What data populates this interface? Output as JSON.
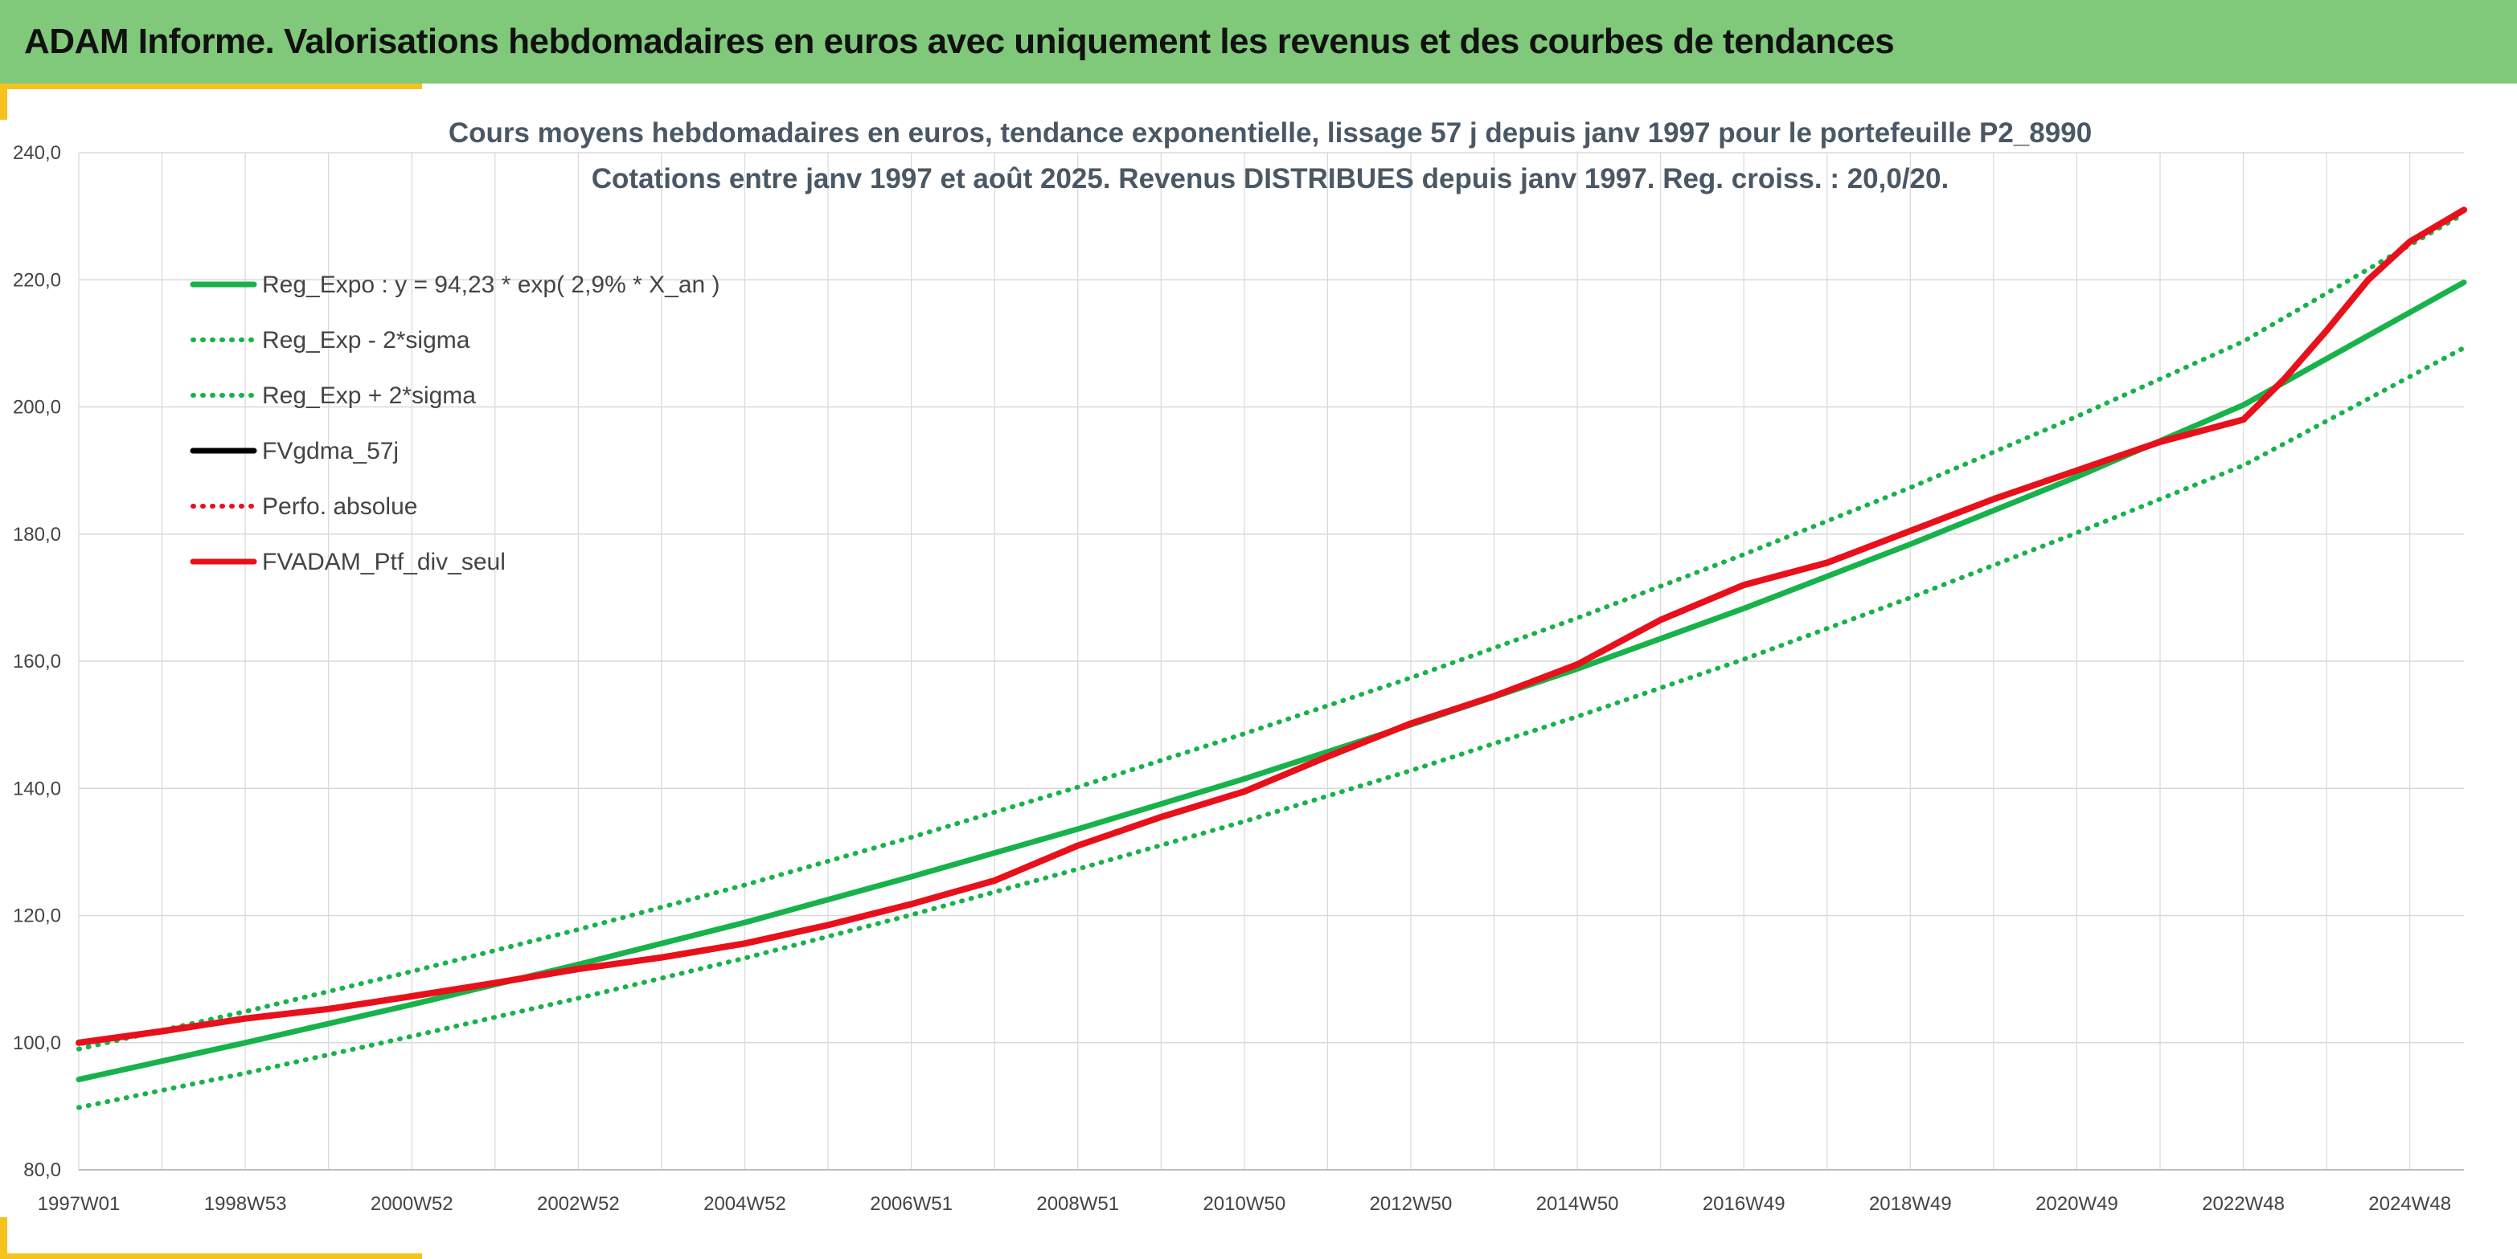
{
  "header": {
    "title": "ADAM Informe. Valorisations hebdomadaires en euros avec uniquement les revenus et des courbes de tendances"
  },
  "colors": {
    "header_bg": "#80c97a",
    "accent": "#f6c21c",
    "reg_green": "#18b24b",
    "series_red": "#e8101a",
    "series_black": "#000000",
    "grid": "#d9d9d9"
  },
  "chart_data": {
    "type": "line",
    "title_line1": "Cours moyens hebdomadaires en euros, tendance exponentielle, lissage 57 j depuis janv 1997 pour le portefeuille P2_8990",
    "title_line2": "Cotations entre janv 1997 et août 2025. Revenus DISTRIBUES depuis janv 1997. Reg. croiss. : 20,0/20.",
    "xlabel": "",
    "ylabel": "",
    "x_range": [
      1997.0,
      2025.65
    ],
    "ylim": [
      80,
      240
    ],
    "y_ticks": [
      {
        "value": 80,
        "label": "80,0"
      },
      {
        "value": 100,
        "label": "100,0"
      },
      {
        "value": 120,
        "label": "120,0"
      },
      {
        "value": 140,
        "label": "140,0"
      },
      {
        "value": 160,
        "label": "160,0"
      },
      {
        "value": 180,
        "label": "180,0"
      },
      {
        "value": 200,
        "label": "200,0"
      },
      {
        "value": 220,
        "label": "220,0"
      },
      {
        "value": 240,
        "label": "240,0"
      }
    ],
    "x_ticks": [
      {
        "year": 1997.0,
        "label": "1997W01"
      },
      {
        "year": 1999.0,
        "label": "1998W53"
      },
      {
        "year": 2001.0,
        "label": "2000W52"
      },
      {
        "year": 2003.0,
        "label": "2002W52"
      },
      {
        "year": 2005.0,
        "label": "2004W52"
      },
      {
        "year": 2007.0,
        "label": "2006W51"
      },
      {
        "year": 2009.0,
        "label": "2008W51"
      },
      {
        "year": 2011.0,
        "label": "2010W50"
      },
      {
        "year": 2013.0,
        "label": "2012W50"
      },
      {
        "year": 2015.0,
        "label": "2014W50"
      },
      {
        "year": 2017.0,
        "label": "2016W49"
      },
      {
        "year": 2019.0,
        "label": "2018W49"
      },
      {
        "year": 2021.0,
        "label": "2020W49"
      },
      {
        "year": 2023.0,
        "label": "2022W48"
      },
      {
        "year": 2025.0,
        "label": "2024W48"
      }
    ],
    "grid": true,
    "legend_placement": "top-left",
    "series": [
      {
        "name": "Reg_Expo : y = 94,23 * exp( 2,9% *  X_an )",
        "style": "solid",
        "color": "#18b24b",
        "x": [
          1997,
          1999,
          2001,
          2003,
          2005,
          2007,
          2009,
          2011,
          2013,
          2015,
          2017,
          2019,
          2021,
          2023,
          2025.65
        ],
        "y": [
          94.2,
          100.0,
          106.0,
          112.3,
          118.9,
          126.1,
          133.6,
          141.5,
          150.0,
          158.8,
          168.3,
          178.4,
          189.0,
          200.3,
          219.6
        ]
      },
      {
        "name": "Reg_Exp - 2*sigma",
        "style": "dotted",
        "color": "#18b24b",
        "x": [
          1997,
          1999,
          2001,
          2003,
          2005,
          2007,
          2009,
          2011,
          2013,
          2015,
          2017,
          2019,
          2021,
          2023,
          2025.65
        ],
        "y": [
          89.8,
          95.2,
          101.0,
          107.0,
          113.3,
          120.1,
          127.3,
          134.8,
          142.8,
          151.3,
          160.3,
          170.0,
          180.2,
          190.8,
          209.3
        ]
      },
      {
        "name": "Reg_Exp + 2*sigma",
        "style": "dotted",
        "color": "#18b24b",
        "x": [
          1997,
          1999,
          2001,
          2003,
          2005,
          2007,
          2009,
          2011,
          2013,
          2015,
          2017,
          2019,
          2021,
          2023,
          2025.65
        ],
        "y": [
          99.0,
          104.9,
          111.2,
          117.8,
          124.8,
          132.3,
          140.2,
          148.6,
          157.4,
          166.8,
          176.8,
          187.3,
          198.5,
          210.3,
          230.4
        ]
      },
      {
        "name": "FVgdma_57j",
        "style": "solid",
        "color": "#000000",
        "x": [
          1997,
          1998,
          1999,
          2000,
          2001,
          2002,
          2003,
          2004,
          2005,
          2006,
          2007,
          2008,
          2009,
          2010,
          2011,
          2012,
          2013,
          2014,
          2015,
          2016,
          2017,
          2018,
          2019,
          2020,
          2021,
          2022,
          2023,
          2023.5,
          2024,
          2024.5,
          2025,
          2025.65
        ],
        "y": [
          100.0,
          101.8,
          103.8,
          105.3,
          107.3,
          109.4,
          111.6,
          113.4,
          115.6,
          118.5,
          121.8,
          125.5,
          131.0,
          135.5,
          139.5,
          145.0,
          150.2,
          154.5,
          159.5,
          166.5,
          172.0,
          175.5,
          180.5,
          185.5,
          190.0,
          194.5,
          198.0,
          204.5,
          212.0,
          220.0,
          226.0,
          231.0
        ]
      },
      {
        "name": "Perfo. absolue",
        "style": "dotted",
        "color": "#e8101a",
        "x": [
          1997,
          1998,
          1999,
          2000,
          2001,
          2002,
          2003,
          2004,
          2005,
          2006,
          2007,
          2008,
          2009,
          2010,
          2011,
          2012,
          2013,
          2014,
          2015,
          2016,
          2017,
          2018,
          2019,
          2020,
          2021,
          2022,
          2023,
          2023.5,
          2024,
          2024.5,
          2025,
          2025.65
        ],
        "y": [
          100.0,
          101.8,
          103.8,
          105.3,
          107.3,
          109.4,
          111.6,
          113.4,
          115.6,
          118.5,
          121.8,
          125.5,
          131.0,
          135.5,
          139.5,
          145.0,
          150.2,
          154.5,
          159.5,
          166.5,
          172.0,
          175.5,
          180.5,
          185.5,
          190.0,
          194.5,
          198.0,
          204.5,
          212.0,
          220.0,
          226.0,
          231.0
        ]
      },
      {
        "name": "FVADAM_Ptf_div_seul",
        "style": "solid",
        "color": "#e8101a",
        "x": [
          1997,
          1998,
          1999,
          2000,
          2001,
          2002,
          2003,
          2004,
          2005,
          2006,
          2007,
          2008,
          2009,
          2010,
          2011,
          2012,
          2013,
          2014,
          2015,
          2016,
          2017,
          2018,
          2019,
          2020,
          2021,
          2022,
          2023,
          2023.5,
          2024,
          2024.5,
          2025,
          2025.65
        ],
        "y": [
          100.0,
          101.8,
          103.8,
          105.3,
          107.3,
          109.4,
          111.6,
          113.4,
          115.6,
          118.5,
          121.8,
          125.5,
          131.0,
          135.5,
          139.5,
          145.0,
          150.2,
          154.5,
          159.5,
          166.5,
          172.0,
          175.5,
          180.5,
          185.5,
          190.0,
          194.5,
          198.0,
          204.5,
          212.0,
          220.0,
          226.0,
          231.0
        ]
      }
    ]
  }
}
